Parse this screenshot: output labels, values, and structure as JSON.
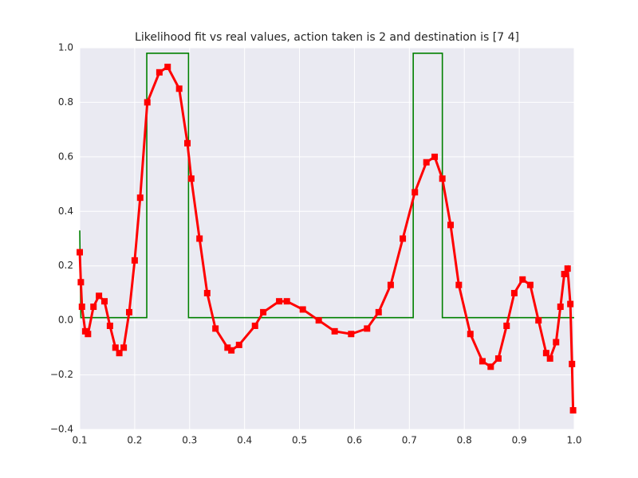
{
  "chart_data": {
    "type": "line",
    "title": "Likelihood fit vs real values, action taken is 2 and destination is [7 4]",
    "xlim": [
      0.1,
      1.0
    ],
    "ylim": [
      -0.4,
      1.0
    ],
    "xticks": [
      0.1,
      0.2,
      0.3,
      0.4,
      0.5,
      0.6,
      0.7,
      0.8,
      0.9,
      {
        "value": 1.0,
        "label": "1.0"
      }
    ],
    "yticks": [
      {
        "value": -0.4,
        "label": "−0.4"
      },
      {
        "value": -0.2,
        "label": "−0.2"
      },
      {
        "value": 0.0,
        "label": "0.0"
      },
      {
        "value": 0.2,
        "label": "0.2"
      },
      {
        "value": 0.4,
        "label": "0.4"
      },
      {
        "value": 0.6,
        "label": "0.6"
      },
      {
        "value": 0.8,
        "label": "0.8"
      },
      {
        "value": 1.0,
        "label": "1.0"
      }
    ],
    "grid": true,
    "series": [
      {
        "color": "#008000",
        "marker": "none",
        "x": [
          0.1,
          0.102,
          0.222,
          0.222,
          0.298,
          0.298,
          0.707,
          0.707,
          0.76,
          0.76,
          1.0
        ],
        "values": [
          0.33,
          0.01,
          0.01,
          0.98,
          0.98,
          0.01,
          0.01,
          0.98,
          0.98,
          0.01,
          0.01
        ]
      },
      {
        "color": "#ff0000",
        "marker": "square",
        "x": [
          0.1,
          0.102,
          0.104,
          0.11,
          0.115,
          0.125,
          0.135,
          0.145,
          0.155,
          0.165,
          0.172,
          0.18,
          0.19,
          0.2,
          0.21,
          0.223,
          0.245,
          0.26,
          0.281,
          0.296,
          0.303,
          0.318,
          0.332,
          0.347,
          0.369,
          0.376,
          0.39,
          0.419,
          0.434,
          0.463,
          0.477,
          0.506,
          0.535,
          0.564,
          0.594,
          0.623,
          0.644,
          0.666,
          0.688,
          0.71,
          0.731,
          0.746,
          0.76,
          0.775,
          0.79,
          0.811,
          0.833,
          0.848,
          0.862,
          0.877,
          0.891,
          0.906,
          0.92,
          0.935,
          0.949,
          0.956,
          0.967,
          0.975,
          0.982,
          0.988,
          0.993,
          0.996,
          0.998
        ],
        "values": [
          0.25,
          0.14,
          0.05,
          -0.04,
          -0.05,
          0.05,
          0.09,
          0.07,
          -0.02,
          -0.1,
          -0.12,
          -0.1,
          0.03,
          0.22,
          0.45,
          0.8,
          0.91,
          0.93,
          0.85,
          0.65,
          0.52,
          0.3,
          0.1,
          -0.03,
          -0.1,
          -0.11,
          -0.09,
          -0.02,
          0.03,
          0.07,
          0.07,
          0.04,
          0.0,
          -0.04,
          -0.05,
          -0.03,
          0.03,
          0.13,
          0.3,
          0.47,
          0.58,
          0.6,
          0.52,
          0.35,
          0.13,
          -0.05,
          -0.15,
          -0.17,
          -0.14,
          -0.02,
          0.1,
          0.15,
          0.13,
          0.0,
          -0.12,
          -0.14,
          -0.08,
          0.05,
          0.17,
          0.19,
          0.06,
          -0.16,
          -0.33
        ]
      }
    ]
  }
}
